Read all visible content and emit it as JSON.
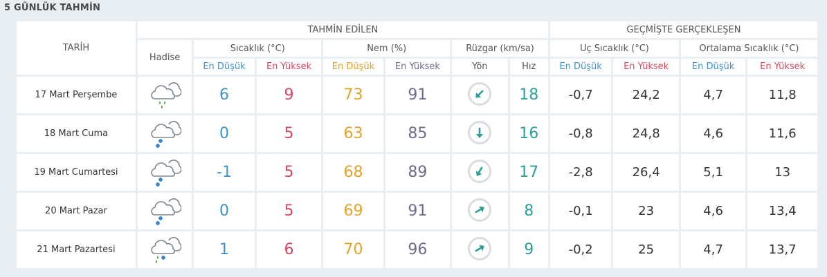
{
  "title": "5 GÜNLÜK TAHMİN",
  "headers": {
    "date": "TARİH",
    "forecast": "TAHMİN EDİLEN",
    "past": "GEÇMİŞTE GERÇEKLEŞEN",
    "weather": "Hadise",
    "temp": "Sıcaklık (°C)",
    "humidity": "Nem (%)",
    "wind": "Rüzgar (km/sa)",
    "extreme_temp": "Uç Sıcaklık (°C)",
    "avg_temp": "Ortalama Sıcaklık (°C)",
    "low": "En Düşük",
    "high": "En Yüksek",
    "direction": "Yön",
    "speed": "Hız"
  },
  "colors": {
    "low": "#3f93c9",
    "high": "#d8465d",
    "humidity_low": "#e3a229",
    "humidity_high": "#6c6c8a",
    "wind_speed": "#2c9f97"
  },
  "rows": [
    {
      "date": "17 Mart Perşembe",
      "icon": "cloud-rain-icon",
      "temp_low": "6",
      "temp_high": "9",
      "hum_low": "73",
      "hum_high": "91",
      "wind_dir": "southwest",
      "wind_angle": 225,
      "wind_speed": "18",
      "ext_low": "-0,7",
      "ext_high": "24,2",
      "avg_low": "4,7",
      "avg_high": "11,8"
    },
    {
      "date": "18 Mart Cuma",
      "icon": "cloud-snow-icon",
      "temp_low": "0",
      "temp_high": "5",
      "hum_low": "63",
      "hum_high": "85",
      "wind_dir": "south",
      "wind_angle": 180,
      "wind_speed": "16",
      "ext_low": "-0,8",
      "ext_high": "24,8",
      "avg_low": "4,6",
      "avg_high": "11,6"
    },
    {
      "date": "19 Mart Cumartesi",
      "icon": "cloud-snow-icon",
      "temp_low": "-1",
      "temp_high": "5",
      "hum_low": "68",
      "hum_high": "89",
      "wind_dir": "southwest",
      "wind_angle": 210,
      "wind_speed": "17",
      "ext_low": "-2,8",
      "ext_high": "26,4",
      "avg_low": "5,1",
      "avg_high": "13"
    },
    {
      "date": "20 Mart Pazar",
      "icon": "cloud-snow-icon",
      "temp_low": "0",
      "temp_high": "5",
      "hum_low": "69",
      "hum_high": "91",
      "wind_dir": "northeast",
      "wind_angle": 60,
      "wind_speed": "8",
      "ext_low": "-0,1",
      "ext_high": "23",
      "avg_low": "4,6",
      "avg_high": "13,4"
    },
    {
      "date": "21 Mart Pazartesi",
      "icon": "cloud-sleet-icon",
      "temp_low": "1",
      "temp_high": "6",
      "hum_low": "70",
      "hum_high": "96",
      "wind_dir": "northeast",
      "wind_angle": 60,
      "wind_speed": "9",
      "ext_low": "-0,2",
      "ext_high": "25",
      "avg_low": "4,7",
      "avg_high": "13,7"
    }
  ]
}
